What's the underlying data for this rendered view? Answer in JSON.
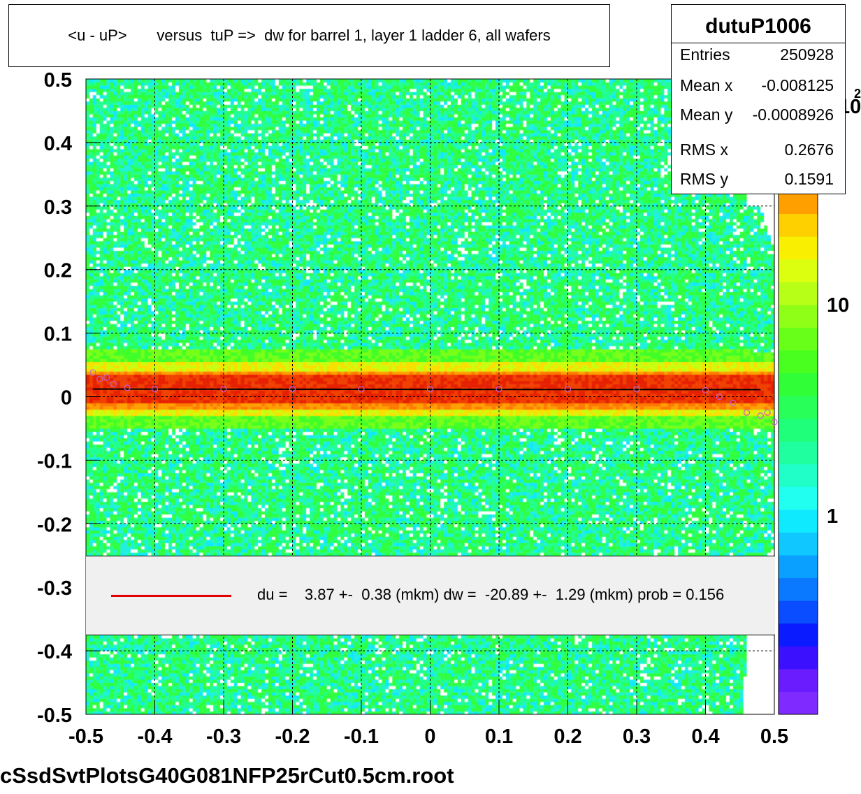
{
  "title": "<u - uP>       versus  tuP =>  dw for barrel 1, layer 1 ladder 6, all wafers",
  "stats": {
    "name": "dutuP1006",
    "rows": [
      {
        "label": "Entries",
        "value": "250928"
      },
      {
        "label": "Mean x",
        "value": "-0.008125"
      },
      {
        "label": "Mean y",
        "value": "-0.0008926"
      },
      {
        "label": "RMS x",
        "value": "0.2676"
      },
      {
        "label": "RMS y",
        "value": "0.1591"
      }
    ]
  },
  "legend": {
    "line_color": "#e00000",
    "text": "du =    3.87 +-  0.38 (mkm) dw =  -20.89 +-  1.29 (mkm) prob = 0.156"
  },
  "footer": "cSsdSvtPlotsG40G081NFP25rCut0.5cm.root",
  "colorbar": {
    "labels": [
      "1",
      "10",
      "10"
    ],
    "exponent": "2",
    "colors": [
      "#7f2bff",
      "#6a1cff",
      "#3a10ff",
      "#0a1cff",
      "#0a4cff",
      "#0a78ff",
      "#0aa0ff",
      "#10c8ff",
      "#10eaff",
      "#20fff0",
      "#20ffc8",
      "#20ffa0",
      "#20ff7a",
      "#28ff58",
      "#30ff38",
      "#48ff20",
      "#68ff18",
      "#90ff18",
      "#b8ff18",
      "#dcff10",
      "#f8f000",
      "#ffd000",
      "#ffa000"
    ]
  },
  "chart_data": {
    "type": "heatmap",
    "title": "<u - uP>       versus  tuP =>  dw for barrel 1, layer 1 ladder 6, all wafers",
    "xlabel": "",
    "ylabel": "",
    "xlim": [
      -0.5,
      0.5
    ],
    "ylim": [
      -0.5,
      0.5
    ],
    "x_ticks": [
      "-0.5",
      "-0.4",
      "-0.3",
      "-0.2",
      "-0.1",
      "0",
      "0.1",
      "0.2",
      "0.3",
      "0.4",
      "0.5"
    ],
    "y_ticks": [
      "-0.5",
      "-0.4",
      "-0.3",
      "-0.2",
      "-0.1",
      "0",
      "0.1",
      "0.2",
      "0.3",
      "0.4",
      "0.5"
    ],
    "z_scale": "log",
    "grid": true,
    "band_center_y": 0.012,
    "profile_points": {
      "x": [
        -0.49,
        -0.48,
        -0.47,
        -0.46,
        -0.44,
        -0.4,
        -0.3,
        -0.2,
        -0.1,
        0.0,
        0.1,
        0.2,
        0.3,
        0.4,
        0.42,
        0.44,
        0.46,
        0.48,
        0.49,
        0.5
      ],
      "y": [
        0.038,
        0.028,
        0.03,
        0.02,
        0.014,
        0.012,
        0.012,
        0.012,
        0.012,
        0.012,
        0.012,
        0.012,
        0.012,
        0.01,
        0.0,
        -0.01,
        -0.025,
        -0.03,
        -0.025,
        -0.04
      ]
    },
    "fit_line": {
      "x": [
        -0.49,
        0.48
      ],
      "y": [
        0.012,
        0.011
      ]
    }
  }
}
